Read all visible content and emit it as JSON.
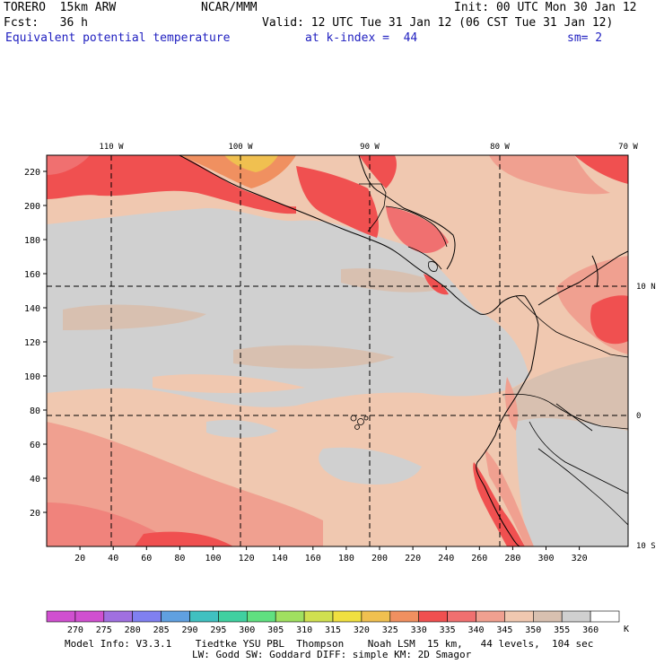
{
  "header": {
    "model": "TORERO",
    "resolution": "15km ARW",
    "center": "NCAR/MMM",
    "init": "Init: 00 UTC Mon 30 Jan 12",
    "fcst_label": "Fcst:",
    "fcst_value": "36 h",
    "valid": "Valid: 12 UTC Tue 31 Jan 12 (06 CST Tue 31 Jan 12)",
    "field": "Equivalent potential temperature",
    "level": "at k-index =  44",
    "smoothing": "sm= 2"
  },
  "map": {
    "lon_labels": [
      "110 W",
      "100 W",
      "90 W",
      "80 W",
      "70 W"
    ],
    "lat_labels": [
      "10 N",
      "0",
      "10 S"
    ],
    "y_ticks": [
      "20",
      "40",
      "60",
      "80",
      "100",
      "120",
      "140",
      "160",
      "180",
      "200",
      "220"
    ],
    "x_ticks": [
      "20",
      "40",
      "60",
      "80",
      "100",
      "120",
      "140",
      "160",
      "180",
      "200",
      "220",
      "240",
      "260",
      "280",
      "300",
      "320"
    ]
  },
  "colorbar": {
    "values": [
      "270",
      "275",
      "280",
      "285",
      "290",
      "295",
      "300",
      "305",
      "310",
      "315",
      "320",
      "325",
      "330",
      "335",
      "340",
      "345",
      "350",
      "355",
      "360"
    ],
    "unit": "K",
    "colors": [
      "#d050d0",
      "#a070e0",
      "#8080f0",
      "#60a0e0",
      "#40c0c0",
      "#40d0a0",
      "#60e080",
      "#a0e060",
      "#d0e050",
      "#f0e040",
      "#f0c050",
      "#f09060",
      "#f05050",
      "#f07070",
      "#f0a090",
      "#f0c8b0",
      "#d8c0b0",
      "#d0d0d0",
      "#ffffff"
    ]
  },
  "footer": {
    "line1": "Model Info: V3.3.1    Tiedtke YSU PBL  Thompson    Noah LSM  15 km,   44 levels,  104 sec",
    "line2": "LW: Godd SW: Goddard DIFF: simple KM: 2D Smagor"
  }
}
